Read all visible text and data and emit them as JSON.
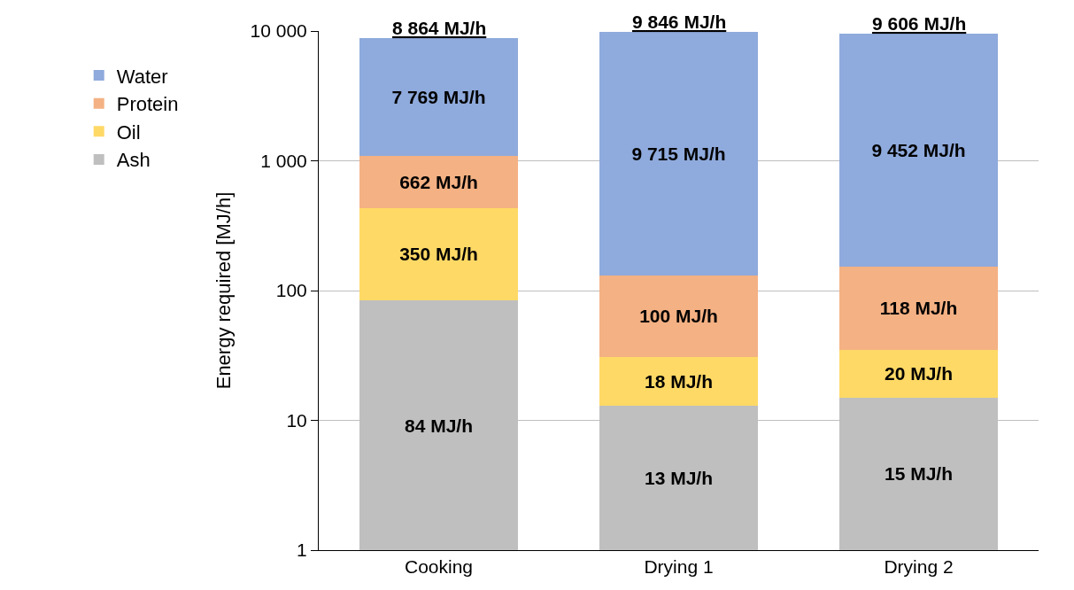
{
  "chart_data": {
    "type": "bar",
    "stacked": true,
    "log": true,
    "ylabel": "Energy required [MJ/h]",
    "categories": [
      "Cooking",
      "Drying 1",
      "Drying 2"
    ],
    "series": [
      {
        "name": "Ash",
        "color": "#bfbfbf",
        "values": [
          84,
          13,
          15
        ],
        "value_labels": [
          "84 MJ/h",
          "13 MJ/h",
          "15 MJ/h"
        ]
      },
      {
        "name": "Oil",
        "color": "#ffd966",
        "values": [
          350,
          18,
          20
        ],
        "value_labels": [
          "350 MJ/h",
          "18 MJ/h",
          "20 MJ/h"
        ]
      },
      {
        "name": "Protein",
        "color": "#f4b183",
        "values": [
          662,
          100,
          118
        ],
        "value_labels": [
          "662 MJ/h",
          "100 MJ/h",
          "118 MJ/h"
        ]
      },
      {
        "name": "Water",
        "color": "#8faadc",
        "values": [
          7769,
          9715,
          9452
        ],
        "value_labels": [
          "7 769 MJ/h",
          "9 715 MJ/h",
          "9 452 MJ/h"
        ]
      }
    ],
    "totals": [
      "8 864 MJ/h",
      "9 846 MJ/h",
      "9 606 MJ/h"
    ],
    "ylim": [
      1,
      10000
    ],
    "yticks": [
      1,
      10,
      100,
      {
        "value": 1000,
        "label": "1 000"
      },
      {
        "value": 10000,
        "label": "10 000"
      }
    ],
    "grid": "y",
    "legend": "left"
  }
}
